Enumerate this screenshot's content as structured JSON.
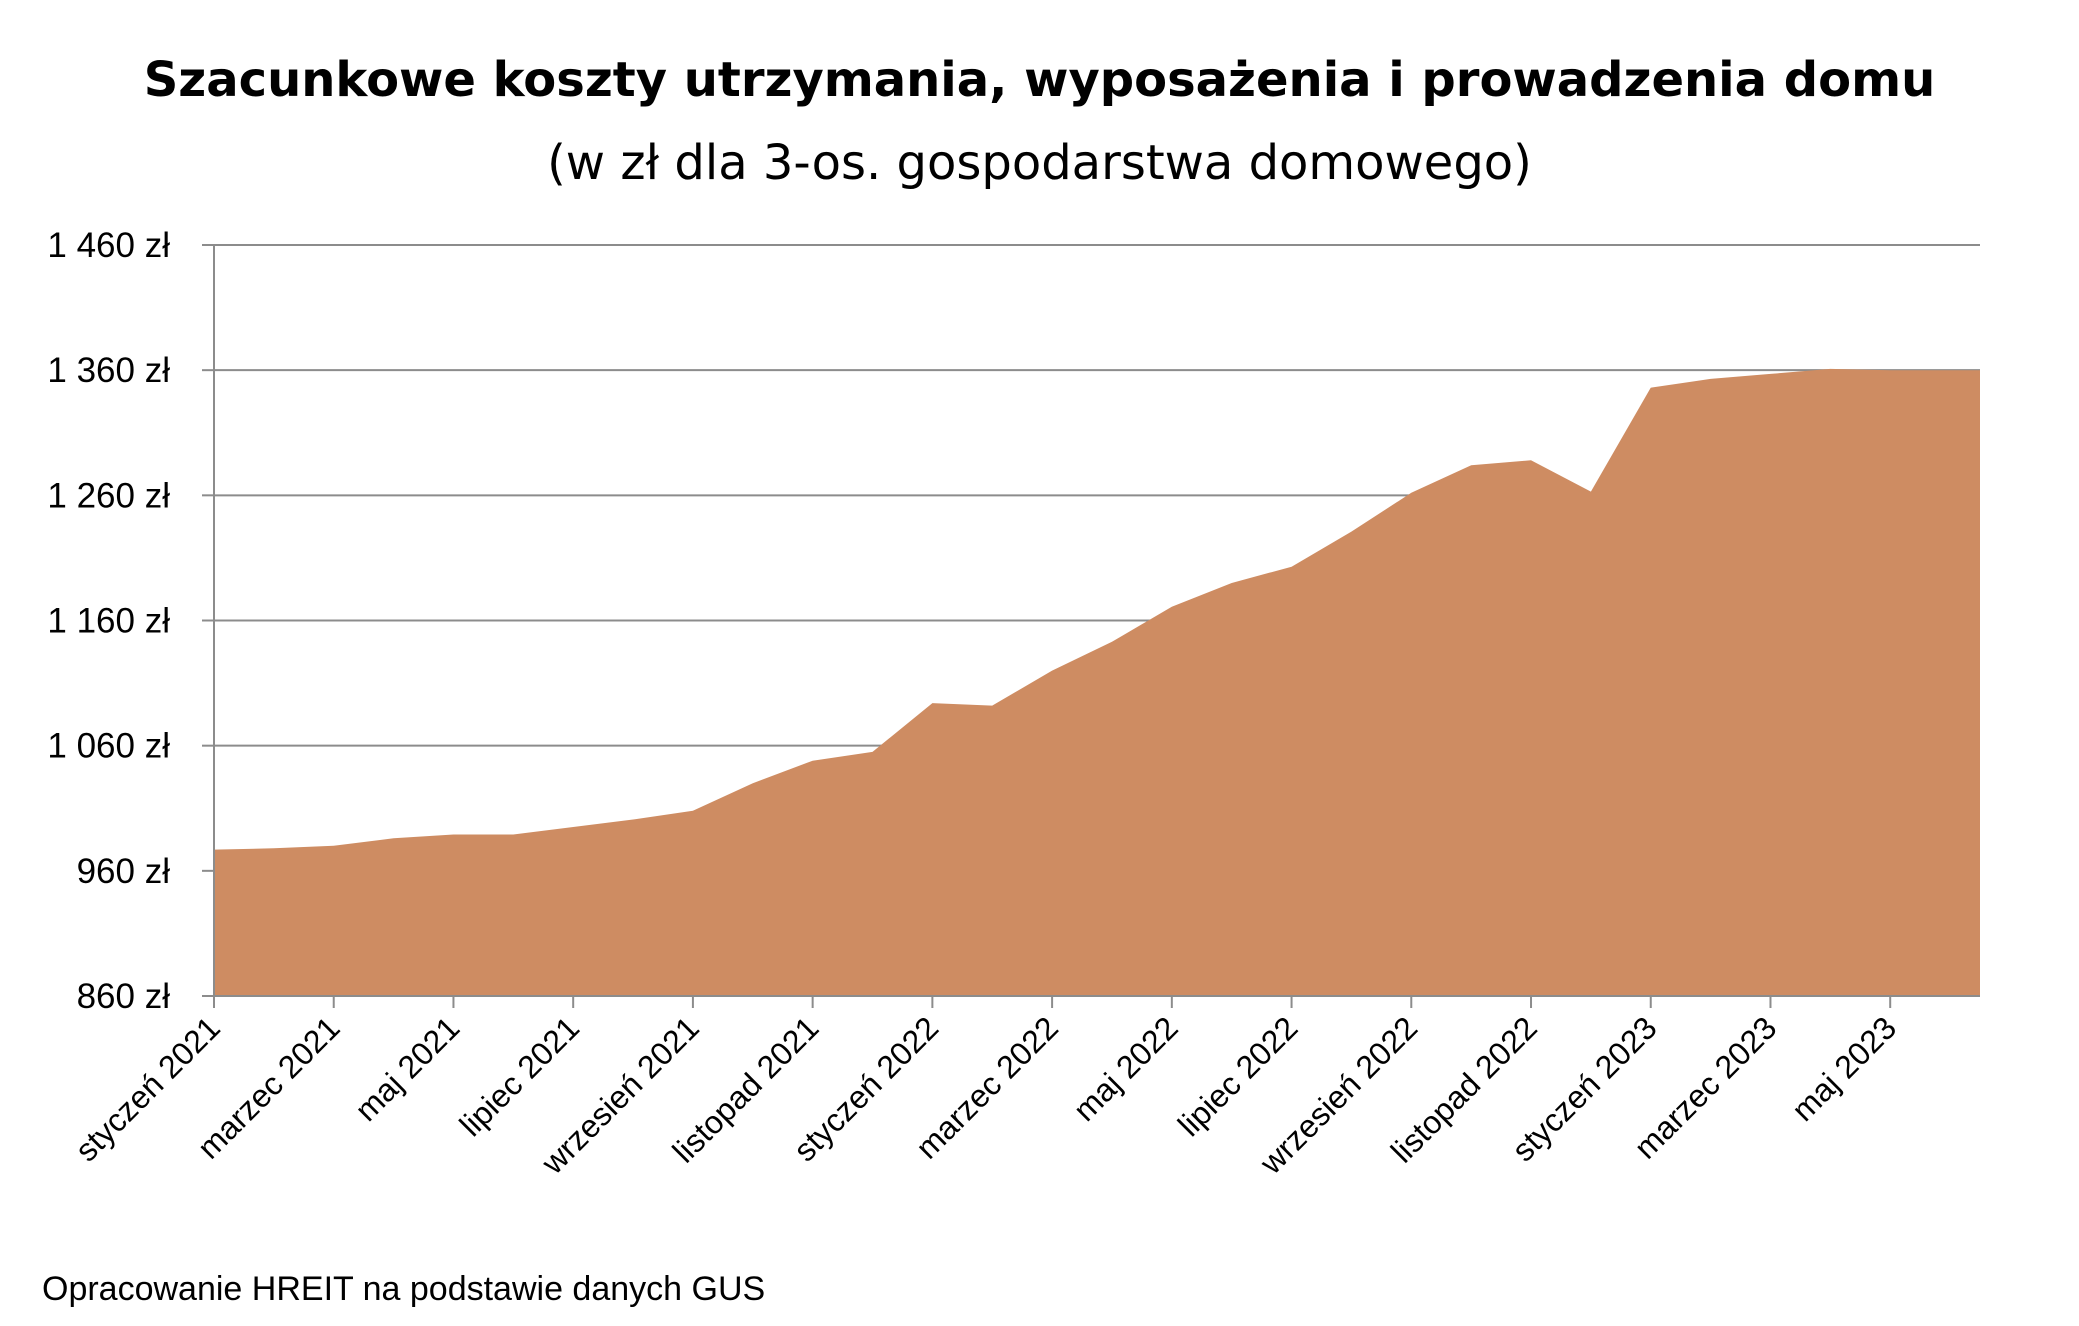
{
  "chart_data": {
    "type": "area",
    "title": "Szacunkowe koszty utrzymania, wyposażenia i prowadzenia domu",
    "subtitle": "(w zł dla 3-os. gospodarstwa domowego)",
    "xlabel": "",
    "ylabel": "",
    "ylim": [
      860,
      1460
    ],
    "yticks": [
      860,
      960,
      1060,
      1160,
      1260,
      1360,
      1460
    ],
    "ytick_labels": [
      "860 zł",
      "960 zł",
      "1 060 zł",
      "1 160 zł",
      "1 260 zł",
      "1 360 zł",
      "1 460 zł"
    ],
    "x": [
      "styczeń 2021",
      "luty 2021",
      "marzec 2021",
      "kwiecień 2021",
      "maj 2021",
      "czerwiec 2021",
      "lipiec 2021",
      "sierpień 2021",
      "wrzesień 2021",
      "październik 2021",
      "listopad 2021",
      "grudzień 2021",
      "styczeń 2022",
      "luty 2022",
      "marzec 2022",
      "kwiecień 2022",
      "maj 2022",
      "czerwiec 2022",
      "lipiec 2022",
      "sierpień 2022",
      "wrzesień 2022",
      "październik 2022",
      "listopad 2022",
      "grudzień 2022",
      "styczeń 2023",
      "luty 2023",
      "marzec 2023",
      "kwiecień 2023",
      "maj 2023",
      "czerwiec 2023"
    ],
    "x_tick_labels": [
      "styczeń 2021",
      "marzec 2021",
      "maj 2021",
      "lipiec 2021",
      "wrzesień 2021",
      "listopad 2021",
      "styczeń 2022",
      "marzec 2022",
      "maj 2022",
      "lipiec 2022",
      "wrzesień 2022",
      "listopad 2022",
      "styczeń 2023",
      "marzec 2023",
      "maj 2023"
    ],
    "series": [
      {
        "values": [
          977,
          978,
          980,
          986,
          989,
          989,
          995,
          1001,
          1008,
          1030,
          1048,
          1055,
          1094,
          1092,
          1120,
          1143,
          1171,
          1190,
          1203,
          1231,
          1262,
          1284,
          1288,
          1263,
          1346,
          1353,
          1357,
          1361,
          1360,
          1360
        ],
        "color": "#ce8c62"
      }
    ],
    "grid": true,
    "gridline_color": "#8c8c8c",
    "legend": "none"
  },
  "source_note": "Opracowanie HREIT na podstawie danych GUS"
}
